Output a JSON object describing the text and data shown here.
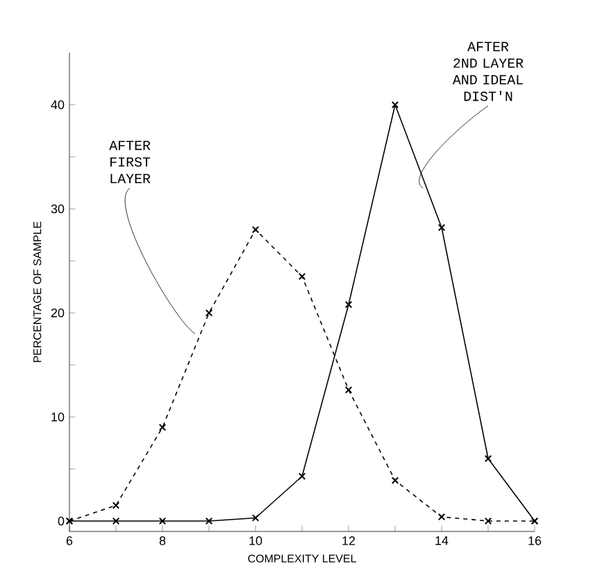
{
  "chart_data": {
    "type": "line",
    "xlabel": "COMPLEXITY LEVEL",
    "ylabel": "PERCENTAGE OF SAMPLE",
    "x": [
      6,
      7,
      8,
      9,
      10,
      11,
      12,
      13,
      14,
      15,
      16
    ],
    "series": [
      {
        "color": "#000000",
        "line_style": "dashed",
        "values": [
          0,
          1.5,
          9,
          20,
          28,
          23.5,
          12.6,
          3.9,
          0.4,
          0,
          0
        ]
      },
      {
        "color": "#000000",
        "line_style": "solid",
        "values": [
          0,
          0,
          0,
          0,
          0.3,
          4.3,
          20.8,
          40,
          28.2,
          6,
          0
        ]
      }
    ],
    "marker": "cross",
    "xlim": [
      6,
      16
    ],
    "ylim": [
      -1,
      45
    ],
    "xticks": [
      6,
      {
        "value": 7,
        "label": null
      },
      8,
      {
        "value": 9,
        "label": null
      },
      10,
      {
        "value": 11,
        "label": null
      },
      12,
      {
        "value": 13,
        "label": null
      },
      14,
      {
        "value": 15,
        "label": null
      },
      16
    ],
    "yticks": [
      0,
      {
        "value": 5,
        "label": null
      },
      10,
      {
        "value": 15,
        "label": null
      },
      20,
      {
        "value": 25,
        "label": null
      },
      30,
      {
        "value": 35,
        "label": null
      },
      40
    ],
    "annotations": [
      {
        "text": "AFTER FIRST LAYER",
        "x": 8.7,
        "y": 18
      },
      {
        "text": "AFTER 2ND LAYER AND IDEAL DIST'N",
        "x": 13.6,
        "y": 32
      }
    ],
    "grid": false
  }
}
